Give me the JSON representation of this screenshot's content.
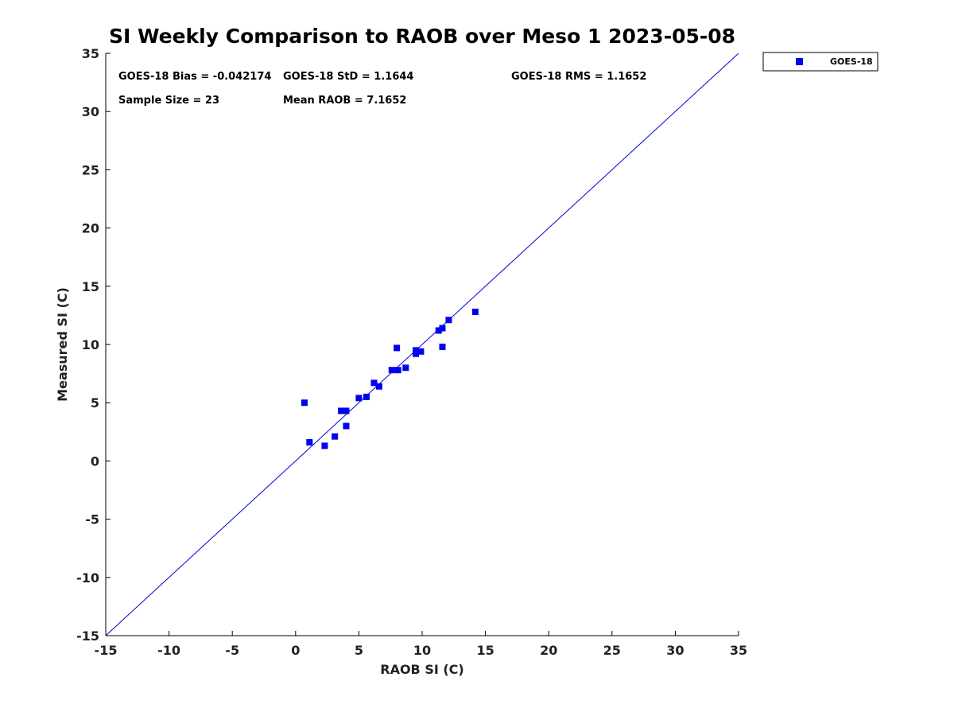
{
  "chart_data": {
    "type": "scatter",
    "title": "SI Weekly Comparison to RAOB over Meso 1 2023-05-08",
    "xlabel": "RAOB SI (C)",
    "ylabel": "Measured SI (C)",
    "xlim": [
      -15,
      35
    ],
    "ylim": [
      -15,
      35
    ],
    "xticks": [
      "-15",
      "-10",
      "-5",
      "0",
      "5",
      "10",
      "15",
      "20",
      "25",
      "30",
      "35"
    ],
    "yticks": [
      "-15",
      "-10",
      "-5",
      "0",
      "5",
      "10",
      "15",
      "20",
      "25",
      "30",
      "35"
    ],
    "grid": false,
    "legend_position": "outside top-right",
    "reference_line": [
      [
        -15,
        -15
      ],
      [
        35,
        35
      ]
    ],
    "series": [
      {
        "name": "GOES-18",
        "color": "#0000ee",
        "marker": "square",
        "x": [
          0.7,
          1.1,
          2.3,
          3.1,
          3.6,
          4.0,
          4.0,
          5.0,
          5.6,
          6.2,
          6.6,
          7.6,
          8.0,
          8.1,
          8.7,
          9.5,
          9.5,
          9.9,
          11.3,
          11.6,
          11.6,
          12.1,
          14.2
        ],
        "y": [
          5.0,
          1.6,
          1.3,
          2.1,
          4.3,
          4.3,
          3.0,
          5.4,
          5.5,
          6.7,
          6.4,
          7.8,
          9.7,
          7.8,
          8.0,
          9.5,
          9.2,
          9.4,
          11.2,
          11.4,
          9.8,
          12.1,
          12.8
        ]
      }
    ],
    "annotations": [
      "GOES-18 Bias = -0.042174",
      "GOES-18 StD = 1.1644",
      "GOES-18 RMS = 1.1652",
      "Sample Size = 23",
      "Mean RAOB = 7.1652"
    ]
  }
}
